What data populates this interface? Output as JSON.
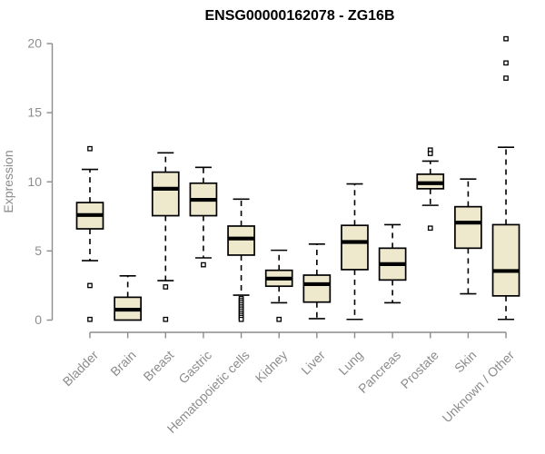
{
  "chart_data": {
    "type": "boxplot",
    "title": "ENSG00000162078 - ZG16B",
    "ylabel": "Expression",
    "xlabel": "",
    "ylim": [
      0,
      20
    ],
    "yticks": [
      0,
      5,
      10,
      15,
      20
    ],
    "grid": false,
    "legend": false,
    "categories": [
      "Bladder",
      "Brain",
      "Breast",
      "Gastric",
      "Hematopoietic cells",
      "Kidney",
      "Liver",
      "Lung",
      "Pancreas",
      "Prostate",
      "Skin",
      "Unknown / Other"
    ],
    "boxes": [
      {
        "category": "Bladder",
        "whisker_low": 4.3,
        "q1": 6.6,
        "median": 7.6,
        "q3": 8.5,
        "whisker_high": 10.9,
        "outliers": [
          12.4,
          2.5,
          0.05
        ]
      },
      {
        "category": "Brain",
        "whisker_low": 0.0,
        "q1": 0.0,
        "median": 0.75,
        "q3": 1.65,
        "whisker_high": 3.2,
        "outliers": []
      },
      {
        "category": "Breast",
        "whisker_low": 2.85,
        "q1": 7.55,
        "median": 9.5,
        "q3": 10.7,
        "whisker_high": 12.1,
        "outliers": [
          2.4,
          0.05
        ]
      },
      {
        "category": "Gastric",
        "whisker_low": 4.5,
        "q1": 7.55,
        "median": 8.7,
        "q3": 9.9,
        "whisker_high": 11.05,
        "outliers": [
          4.0
        ]
      },
      {
        "category": "Hematopoietic cells",
        "whisker_low": 1.8,
        "q1": 4.7,
        "median": 5.9,
        "q3": 6.8,
        "whisker_high": 8.75,
        "outliers": [
          1.55,
          1.4,
          1.25,
          1.1,
          0.95,
          0.8,
          0.65,
          0.5,
          0.35,
          0.2,
          0.05
        ]
      },
      {
        "category": "Kidney",
        "whisker_low": 1.25,
        "q1": 2.45,
        "median": 3.0,
        "q3": 3.6,
        "whisker_high": 5.05,
        "outliers": [
          0.05
        ]
      },
      {
        "category": "Liver",
        "whisker_low": 0.1,
        "q1": 1.3,
        "median": 2.6,
        "q3": 3.25,
        "whisker_high": 5.5,
        "outliers": []
      },
      {
        "category": "Lung",
        "whisker_low": 0.05,
        "q1": 3.65,
        "median": 5.65,
        "q3": 6.85,
        "whisker_high": 9.85,
        "outliers": []
      },
      {
        "category": "Pancreas",
        "whisker_low": 1.25,
        "q1": 2.9,
        "median": 4.05,
        "q3": 5.2,
        "whisker_high": 6.9,
        "outliers": []
      },
      {
        "category": "Prostate",
        "whisker_low": 8.3,
        "q1": 9.5,
        "median": 9.9,
        "q3": 10.55,
        "whisker_high": 11.5,
        "outliers": [
          12.3,
          12.05,
          6.65
        ]
      },
      {
        "category": "Skin",
        "whisker_low": 1.9,
        "q1": 5.2,
        "median": 7.05,
        "q3": 8.2,
        "whisker_high": 10.2,
        "outliers": []
      },
      {
        "category": "Unknown / Other",
        "whisker_low": 0.05,
        "q1": 1.75,
        "median": 3.55,
        "q3": 6.9,
        "whisker_high": 12.5,
        "outliers": [
          20.35,
          18.6,
          17.5
        ]
      }
    ],
    "colors": {
      "box_fill": "#EEE8CD",
      "box_border": "#000000",
      "median": "#000000",
      "whisker": "#000000",
      "outlier_fill": "#FFFFFF",
      "outlier_border": "#000000",
      "axis": "#8C8C8C",
      "tick_label": "#8C8C8C",
      "title": "#000000",
      "background": "#FFFFFF"
    }
  }
}
